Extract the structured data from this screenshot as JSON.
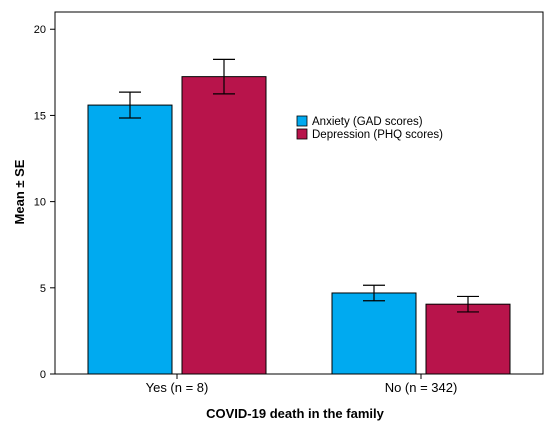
{
  "chart_data": {
    "type": "bar",
    "categories": [
      "Yes (n = 8)",
      "No (n = 342)"
    ],
    "series": [
      {
        "name": "Anxiety (GAD scores)",
        "color": "#00aaf0",
        "values": [
          15.6,
          4.7
        ],
        "se": [
          0.75,
          0.45
        ]
      },
      {
        "name": "Depression (PHQ scores)",
        "color": "#b8144b",
        "values": [
          17.25,
          4.05
        ],
        "se": [
          1.0,
          0.45
        ]
      }
    ],
    "title": "",
    "xlabel": "COVID-19 death in the family",
    "ylabel": "Mean ± SE",
    "ylim": [
      0,
      21
    ],
    "yticks": [
      0,
      5,
      10,
      15,
      20
    ],
    "grid": false,
    "legend_position": "center-right",
    "error_bars": "standard error"
  }
}
